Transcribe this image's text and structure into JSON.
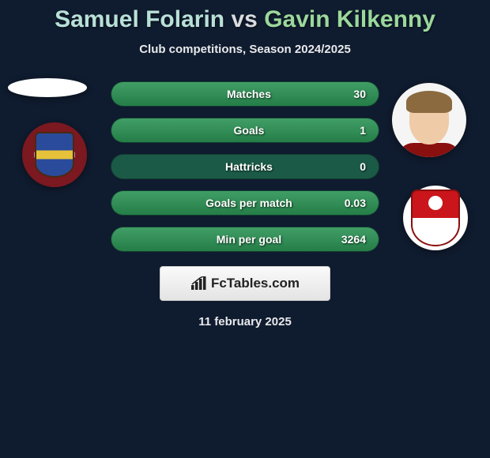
{
  "title": {
    "player_a": "Samuel Folarin",
    "vs": "vs",
    "player_b": "Gavin Kilkenny",
    "color_a": "#b8e0d8",
    "color_vs": "#d8dbdf",
    "color_b": "#9cd89c",
    "fontsize": 30
  },
  "subtitle": "Club competitions, Season 2024/2025",
  "background_color": "#0f1b2e",
  "bar_track_color": "#1b5a46",
  "bar_fill_color": "#2b9354",
  "stats": [
    {
      "label": "Matches",
      "value": "30",
      "fill_pct": 100
    },
    {
      "label": "Goals",
      "value": "1",
      "fill_pct": 100
    },
    {
      "label": "Hattricks",
      "value": "0",
      "fill_pct": 0
    },
    {
      "label": "Goals per match",
      "value": "0.03",
      "fill_pct": 100
    },
    {
      "label": "Min per goal",
      "value": "3264",
      "fill_pct": 100
    }
  ],
  "brand": {
    "name": "FcTables.com",
    "icon": "bar-chart-icon"
  },
  "date": "11 february 2025",
  "avatars": {
    "left_player": "placeholder-silhouette",
    "left_club": "red-yellow-blue-crest",
    "right_player": "young-player-photo",
    "right_club": "red-white-round-crest"
  }
}
